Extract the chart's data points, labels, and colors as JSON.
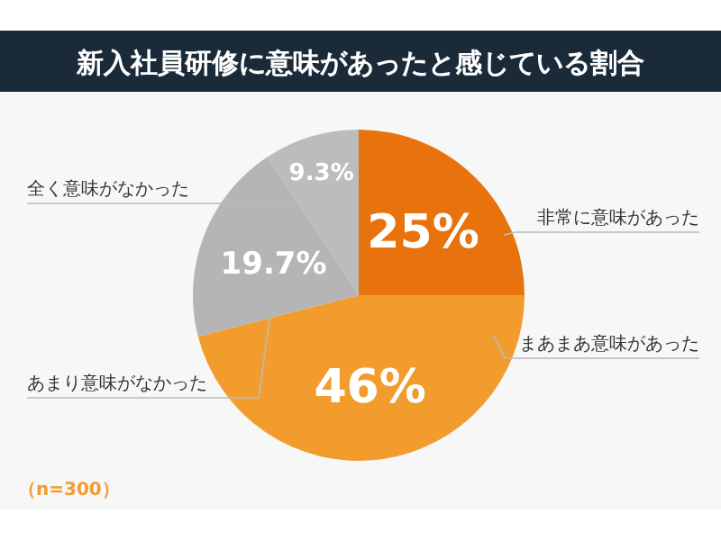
{
  "chart_data": {
    "type": "pie",
    "title": "新入社員研修に意味があったと感じている割合",
    "categories": [
      "非常に意味があった",
      "まあまあ意味があった",
      "あまり意味がなかった",
      "全く意味がなかった"
    ],
    "values": [
      25,
      46,
      19.7,
      9.3
    ],
    "colors": [
      "#e8720c",
      "#f39c2e",
      "#b5b5b5",
      "#bcbcbc"
    ],
    "value_labels": [
      "25%",
      "46%",
      "19.7%",
      "9.3%"
    ],
    "annotations": [
      "（n=300）"
    ]
  }
}
